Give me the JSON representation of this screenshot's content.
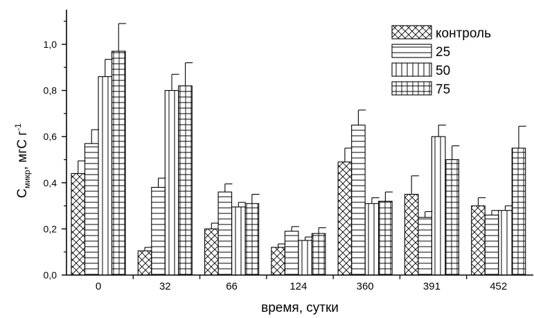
{
  "chart_data": {
    "type": "bar",
    "title": "",
    "xlabel": "время, сутки",
    "ylabel": {
      "main": "C",
      "sub": "микр",
      "unit": ", мгС г",
      "sup": "-1"
    },
    "ylim": [
      0,
      1.15
    ],
    "yticks": [
      "0,0",
      "0,2",
      "0,4",
      "0,6",
      "0,8",
      "1,0"
    ],
    "ytick_values": [
      0,
      0.2,
      0.4,
      0.6,
      0.8,
      1.0
    ],
    "categories": [
      "0",
      "32",
      "66",
      "124",
      "360",
      "391",
      "452"
    ],
    "series": [
      {
        "name": "контроль",
        "pattern": "crosshatch",
        "values": [
          0.44,
          0.105,
          0.2,
          0.12,
          0.49,
          0.35,
          0.3
        ],
        "errors": [
          0.055,
          0.015,
          0.025,
          0.015,
          0.06,
          0.08,
          0.035
        ]
      },
      {
        "name": "25",
        "pattern": "horizontal",
        "values": [
          0.57,
          0.38,
          0.36,
          0.19,
          0.65,
          0.25,
          0.26
        ],
        "errors": [
          0.06,
          0.04,
          0.035,
          0.02,
          0.065,
          0.025,
          0.02
        ]
      },
      {
        "name": "50",
        "pattern": "vertical",
        "values": [
          0.86,
          0.8,
          0.295,
          0.15,
          0.31,
          0.6,
          0.28
        ],
        "errors": [
          0.075,
          0.07,
          0.02,
          0.015,
          0.025,
          0.05,
          0.02
        ]
      },
      {
        "name": "75",
        "pattern": "grid",
        "values": [
          0.97,
          0.82,
          0.31,
          0.18,
          0.32,
          0.5,
          0.55
        ],
        "errors": [
          0.12,
          0.1,
          0.04,
          0.025,
          0.04,
          0.06,
          0.095
        ]
      }
    ],
    "error_bars": true,
    "grid": false,
    "legend_position": "top-right",
    "colors": {
      "bar_fill": "#ffffff",
      "stroke": "#000000"
    }
  }
}
